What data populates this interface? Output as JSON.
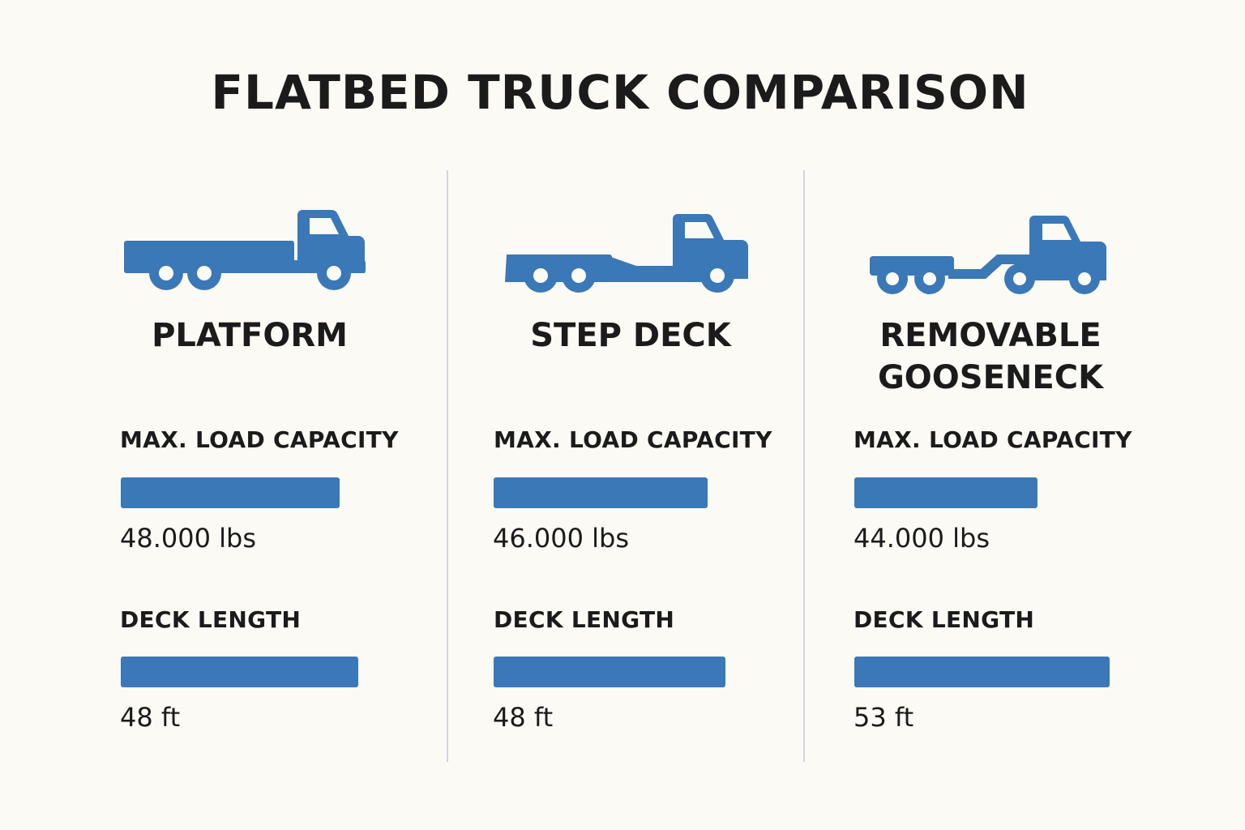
{
  "title": "FLATBED TRUCK COMPARISON",
  "colors": {
    "accent": "#3a78b7",
    "background": "#fbfaf5",
    "text": "#1b1b1b",
    "divider": "#d2d5da"
  },
  "chart_data": {
    "type": "bar",
    "title": "FLATBED TRUCK COMPARISON",
    "categories": [
      "PLATFORM",
      "STEP DECK",
      "REMOVABLE GOOSENECK"
    ],
    "category_lines": [
      [
        "PLATFORM"
      ],
      [
        "STEP DECK"
      ],
      [
        "REMOVABLE",
        "GOOSENECK"
      ]
    ],
    "icons": [
      "platform-truck-icon",
      "step-deck-truck-icon",
      "removable-gooseneck-truck-icon"
    ],
    "series": [
      {
        "name": "MAX. LOAD CAPACITY",
        "values": [
          48000,
          46000,
          44000
        ],
        "labels": [
          "48.000 lbs",
          "46.000 lbs",
          "44.000 lbs"
        ],
        "bar_fraction": [
          0.85,
          0.83,
          0.71
        ]
      },
      {
        "name": "DECK LENGTH",
        "values": [
          48,
          48,
          53
        ],
        "labels": [
          "48 ft",
          "48 ft",
          "53 ft"
        ],
        "bar_fraction": [
          0.92,
          0.9,
          0.99
        ]
      }
    ]
  }
}
